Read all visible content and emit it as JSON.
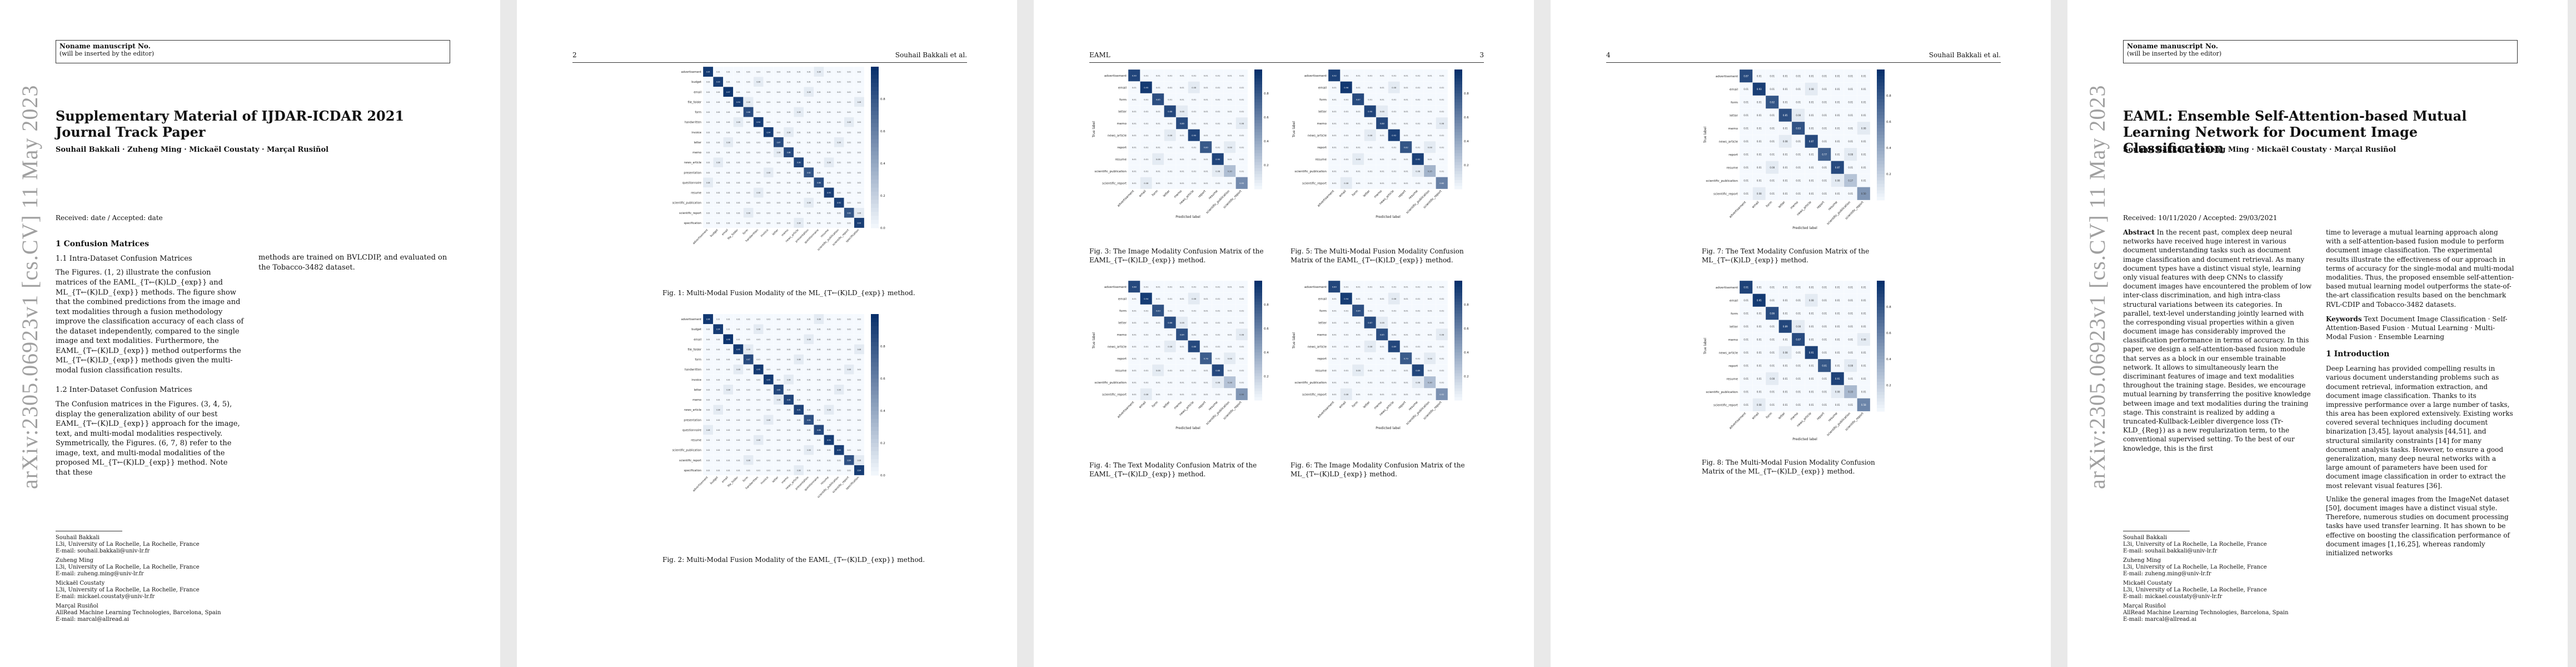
{
  "page1": {
    "notice_title": "Noname manuscript No.",
    "notice_sub": "(will be inserted by the editor)",
    "arxiv_id": "arXiv:2305.06923v1 [cs.CV] 11 May 2023",
    "title": "Supplementary Material of IJDAR-ICDAR 2021 Journal Track Paper",
    "authors": "Souhail Bakkali · Zuheng Ming · Mickaël Coustaty · Marçal Rusiñol",
    "received": "Received: date / Accepted: date",
    "section1": "1 Confusion Matrices",
    "sub11": "1.1 Intra-Dataset Confusion Matrices",
    "para1": "The Figures. (1, 2) illustrate the confusion matrices of the EAML_{T←(K)LD_{exp}} and ML_{T←(K)LD_{exp}} methods. The figure show that the combined predictions from the image and text modalities through a fusion methodology improve the classification accuracy of each class of the dataset independently, compared to the single image and text modalities. Furthermore, the EAML_{T←(K)LD_{exp}} method outperforms the ML_{T←(K)LD_{exp}} methods given the multi-modal fusion classification results.",
    "sub12": "1.2 Inter-Dataset Confusion Matrices",
    "para2": "The Confusion matrices in the Figures. (3, 4, 5), display the generalization ability of our best EAML_{T←(K)LD_{exp}} approach for the image, text, and multi-modal modalities respectively. Symmetrically, the Figures. (6, 7, 8) refer to the image, text, and multi-modal modalities of the proposed ML_{T←(K)LD_{exp}} method. Note that these",
    "para3": "methods are trained on BVLCDIP, and evaluated on the Tobacco-3482 dataset.",
    "affiliations": [
      "Souhail Bakkali",
      "L3i, University of La Rochelle, La Rochelle, France",
      "E-mail: souhail.bakkali@univ-lr.fr",
      "Zuheng Ming",
      "L3i, University of La Rochelle, La Rochelle, France",
      "E-mail: zuheng.ming@univ-lr.fr",
      "Mickaël Coustaty",
      "L3i, University of La Rochelle, La Rochelle, France",
      "E-mail: mickael.coustaty@univ-lr.fr",
      "Marçal Rusiñol",
      "AllRead Machine Learning Technologies, Barcelona, Spain",
      "E-mail: marcal@allread.ai"
    ]
  },
  "page2": {
    "page_no": "2",
    "running_author": "Souhail Bakkali et al.",
    "fig1_caption": "Fig. 1: Multi-Modal Fusion Modality of the ML_{T←(K)LD_{exp}} method.",
    "fig2_caption": "Fig. 2: Multi-Modal Fusion Modality of the EAML_{T←(K)LD_{exp}} method."
  },
  "page3": {
    "running_title": "EAML",
    "page_no": "3",
    "fig3_caption": "Fig. 3: The Image Modality Confusion Matrix of the EAML_{T←(K)LD_{exp}} method.",
    "fig5_caption": "Fig. 5: The Multi-Modal Fusion Modality Confusion Matrix of the EAML_{T←(K)LD_{exp}} method.",
    "fig4_caption": "Fig. 4: The Text Modality Confusion Matrix of the EAML_{T←(K)LD_{exp}} method.",
    "fig6_caption": "Fig. 6: The Image Modality Confusion Matrix of the ML_{T←(K)LD_{exp}} method."
  },
  "page4": {
    "page_no": "4",
    "running_author": "Souhail Bakkali et al.",
    "fig7_caption": "Fig. 7: The Text Modality Confusion Matrix of the ML_{T←(K)LD_{exp}} method.",
    "fig8_caption": "Fig. 8: The Multi-Modal Fusion Modality Confusion Matrix of the ML_{T←(K)LD_{exp}} method."
  },
  "page5": {
    "notice_title": "Noname manuscript No.",
    "notice_sub": "(will be inserted by the editor)",
    "arxiv_id": "arXiv:2305.06923v1 [cs.CV] 11 May 2023",
    "title": "EAML: Ensemble Self-Attention-based Mutual Learning Network for Document Image Classification",
    "authors": "Souhail Bakkali · Zuheng Ming · Mickaël Coustaty · Marçal Rusiñol",
    "received": "Received: 10/11/2020 / Accepted: 29/03/2021",
    "abstract_label": "Abstract",
    "abstract_left": "In the recent past, complex deep neural networks have received huge interest in various document understanding tasks such as document image classification and document retrieval. As many document types have a distinct visual style, learning only visual features with deep CNNs to classify document images have encountered the problem of low inter-class discrimination, and high intra-class structural variations between its categories. In parallel, text-level understanding jointly learned with the corresponding visual properties within a given document image has considerably improved the classification performance in terms of accuracy. In this paper, we design a self-attention-based fusion module that serves as a block in our ensemble trainable network. It allows to simultaneously learn the discriminant features of image and text modalities throughout the training stage. Besides, we encourage mutual learning by transferring the positive knowledge between image and text modalities during the training stage. This constraint is realized by adding a truncated-Kullback-Leibler divergence loss (Tr-KLD_{Reg}) as a new regularization term, to the conventional supervised setting. To the best of our knowledge, this is the first",
    "abstract_right": "time to leverage a mutual learning approach along with a self-attention-based fusion module to perform document image classification. The experimental results illustrate the effectiveness of our approach in terms of accuracy for the single-modal and multi-modal modalities. Thus, the proposed ensemble self-attention-based mutual learning model outperforms the state-of-the-art classification results based on the benchmark RVL-CDIP and Tobacco-3482 datasets.",
    "keywords_label": "Keywords",
    "keywords": "Text Document Image Classification · Self-Attention-Based Fusion · Mutual Learning · Multi-Modal Fusion · Ensemble Learning",
    "intro_heading": "1 Introduction",
    "intro_p1": "Deep Learning has provided compelling results in various document understanding problems such as document retrieval, information extraction, and document image classification. Thanks to its impressive performance over a large number of tasks, this area has been explored extensively. Existing works covered several techniques including document binarization [3,45], layout analysis [44,51], and structural similarity constraints [14] for many document analysis tasks. However, to ensure a good generalization, many deep neural networks with a large amount of parameters have been used for document image classification in order to extract the most relevant visual features [36].",
    "intro_p2": "Unlike the general images from the ImageNet dataset [50], document images have a distinct visual style. Therefore, numerous studies on document processing tasks have used transfer learning. It has shown to be effective on boosting the classification performance of document images [1,16,25], whereas randomly initialized networks",
    "affiliations": [
      "Souhail Bakkali",
      "L3i, University of La Rochelle, La Rochelle, France",
      "E-mail: souhail.bakkali@univ-lr.fr",
      "Zuheng Ming",
      "L3i, University of La Rochelle, La Rochelle, France",
      "E-mail: zuheng.ming@univ-lr.fr",
      "Mickaël Coustaty",
      "L3i, University of La Rochelle, La Rochelle, France",
      "E-mail: mickael.coustaty@univ-lr.fr",
      "Marçal Rusiñol",
      "AllRead Machine Learning Technologies, Barcelona, Spain",
      "E-mail: marcal@allread.ai"
    ]
  },
  "chart_data": [
    {
      "id": "fig1",
      "type": "heatmap",
      "size": 16,
      "labels": [
        "advertisement",
        "budget",
        "email",
        "file_folder",
        "form",
        "handwritten",
        "invoice",
        "letter",
        "memo",
        "news_article",
        "presentation",
        "questionnaire",
        "resume",
        "scientific_publication",
        "scientific_report",
        "specification"
      ],
      "diag": [
        0.95,
        0.93,
        0.97,
        0.94,
        0.86,
        0.94,
        0.94,
        0.87,
        0.88,
        0.9,
        0.82,
        0.86,
        0.93,
        0.92,
        0.82,
        0.93
      ],
      "xlabel": "",
      "ylabel": "",
      "colorbar": [
        0.0,
        0.2,
        0.4,
        0.6,
        0.8
      ]
    },
    {
      "id": "fig2",
      "type": "heatmap",
      "size": 16,
      "labels": [
        "advertisement",
        "budget",
        "email",
        "file_folder",
        "form",
        "handwritten",
        "invoice",
        "letter",
        "memo",
        "news_article",
        "presentation",
        "questionnaire",
        "resume",
        "scientific_publication",
        "scientific_report",
        "specification"
      ],
      "diag": [
        0.96,
        0.94,
        0.98,
        0.95,
        0.87,
        0.95,
        0.95,
        0.89,
        0.9,
        0.91,
        0.84,
        0.88,
        0.94,
        0.93,
        0.84,
        0.94
      ],
      "xlabel": "",
      "ylabel": "",
      "colorbar": [
        0.0,
        0.2,
        0.4,
        0.6,
        0.8
      ]
    },
    {
      "id": "fig3",
      "type": "heatmap",
      "size": 10,
      "labels": [
        "advertisement",
        "email",
        "form",
        "letter",
        "memo",
        "news_article",
        "report",
        "resume",
        "scientific_publication",
        "scientific_report"
      ],
      "diag": [
        0.9,
        0.95,
        0.85,
        0.88,
        0.86,
        0.9,
        0.8,
        0.9,
        0.3,
        0.55
      ],
      "xlabel": "Predicted label",
      "ylabel": "True label",
      "colorbar": [
        0.2,
        0.4,
        0.6,
        0.8
      ]
    },
    {
      "id": "fig5",
      "type": "heatmap",
      "size": 10,
      "labels": [
        "advertisement",
        "email",
        "form",
        "letter",
        "memo",
        "news_article",
        "report",
        "resume",
        "scientific_publication",
        "scientific_report"
      ],
      "diag": [
        0.92,
        0.96,
        0.87,
        0.9,
        0.88,
        0.92,
        0.82,
        0.92,
        0.35,
        0.6
      ],
      "xlabel": "Predicted label",
      "ylabel": "True label",
      "colorbar": [
        0.2,
        0.4,
        0.6,
        0.8
      ]
    },
    {
      "id": "fig4",
      "type": "heatmap",
      "size": 10,
      "labels": [
        "advertisement",
        "email",
        "form",
        "letter",
        "memo",
        "news_article",
        "report",
        "resume",
        "scientific_publication",
        "scientific_report"
      ],
      "diag": [
        0.88,
        0.94,
        0.83,
        0.86,
        0.84,
        0.88,
        0.78,
        0.88,
        0.28,
        0.5
      ],
      "xlabel": "Predicted label",
      "ylabel": "True label",
      "colorbar": [
        0.2,
        0.4,
        0.6,
        0.8
      ]
    },
    {
      "id": "fig6",
      "type": "heatmap",
      "size": 10,
      "labels": [
        "advertisement",
        "email",
        "form",
        "letter",
        "memo",
        "news_article",
        "report",
        "resume",
        "scientific_publication",
        "scientific_report"
      ],
      "diag": [
        0.89,
        0.94,
        0.84,
        0.87,
        0.85,
        0.89,
        0.79,
        0.89,
        0.3,
        0.52
      ],
      "xlabel": "Predicted label",
      "ylabel": "True label",
      "colorbar": [
        0.2,
        0.4,
        0.6,
        0.8
      ]
    },
    {
      "id": "fig7",
      "type": "heatmap",
      "size": 10,
      "labels": [
        "advertisement",
        "email",
        "form",
        "letter",
        "memo",
        "news_article",
        "report",
        "resume",
        "scientific_publication",
        "scientific_report"
      ],
      "diag": [
        0.87,
        0.93,
        0.82,
        0.85,
        0.83,
        0.87,
        0.77,
        0.87,
        0.27,
        0.5
      ],
      "xlabel": "Predicted label",
      "ylabel": "True label",
      "colorbar": [
        0.2,
        0.4,
        0.6,
        0.8
      ]
    },
    {
      "id": "fig8",
      "type": "heatmap",
      "size": 10,
      "labels": [
        "advertisement",
        "email",
        "form",
        "letter",
        "memo",
        "news_article",
        "report",
        "resume",
        "scientific_publication",
        "scientific_report"
      ],
      "diag": [
        0.91,
        0.95,
        0.86,
        0.89,
        0.87,
        0.91,
        0.81,
        0.91,
        0.33,
        0.58
      ],
      "xlabel": "Predicted label",
      "ylabel": "True label",
      "colorbar": [
        0.2,
        0.4,
        0.6,
        0.8
      ]
    }
  ]
}
